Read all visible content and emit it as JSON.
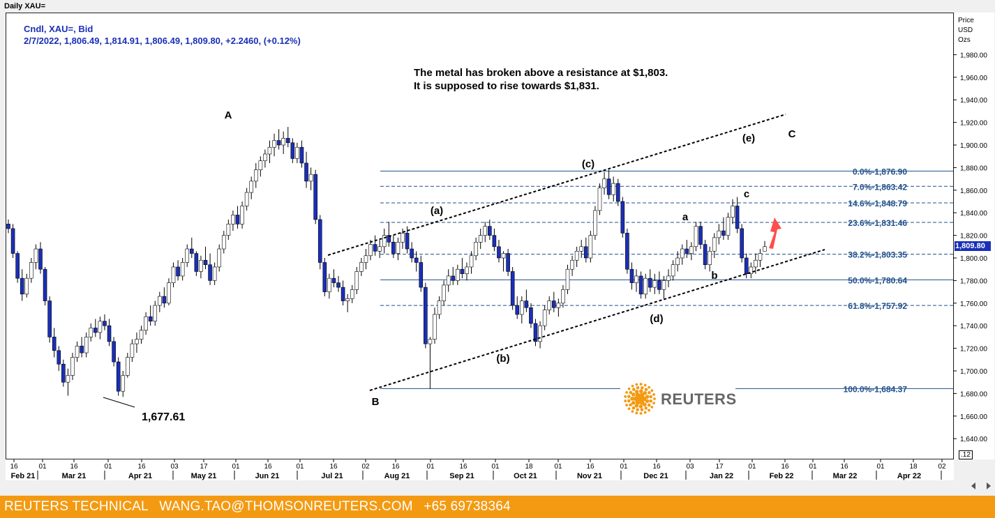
{
  "window_title": "Daily XAU=",
  "legend": {
    "line1": "Cndl, XAU=, Bid",
    "line2": "2/7/2022, 1,806.49, 1,814.91, 1,806.49, 1,809.80, +2.2460, (+0.12%)"
  },
  "annotation": {
    "line1": "The metal has broken above a resistance at $1,803.",
    "line2": "It is supposed to rise towards $1,831."
  },
  "price_axis_header": [
    "Price",
    "USD",
    "Ozs"
  ],
  "last_price_label": "1,809.80",
  "axis_corner_label": ".12",
  "low_label": "1,677.61",
  "logo_text": "REUTERS",
  "footer": {
    "brand": "REUTERS TECHNICAL",
    "email": "WANG.TAO@THOMSONREUTERS.COM",
    "phone": "+65 69738364"
  },
  "colors": {
    "bull_candle": "#ffffff",
    "bear_candle": "#1a2fb8",
    "fib_line": "#1f4f8a",
    "arrow": "#ff4d4d",
    "footer_bg": "#f39a12",
    "legend_text": "#1a2fb8"
  },
  "chart_data": {
    "type": "candlestick",
    "instrument": "XAU=",
    "timeframe": "Daily",
    "ylim": [
      1625,
      2000
    ],
    "y_ticks": [
      1640,
      1660,
      1680,
      1700,
      1720,
      1740,
      1760,
      1780,
      1800,
      1820,
      1840,
      1860,
      1880,
      1900,
      1920,
      1940,
      1960,
      1980
    ],
    "y_tick_labels": [
      "1,640.00",
      "1,660.00",
      "1,680.00",
      "1,700.00",
      "1,720.00",
      "1,740.00",
      "1,760.00",
      "1,780.00",
      "1,800.00",
      "1,820.00",
      "1,840.00",
      "1,860.00",
      "1,880.00",
      "1,900.00",
      "1,920.00",
      "1,940.00",
      "1,960.00",
      "1,980.00"
    ],
    "day_ticks": [
      "16",
      "01",
      "16",
      "01",
      "16",
      "03",
      "17",
      "01",
      "16",
      "01",
      "16",
      "02",
      "16",
      "01",
      "16",
      "01",
      "18",
      "01",
      "16",
      "01",
      "16",
      "03",
      "17",
      "01",
      "16",
      "01",
      "16",
      "01",
      "18",
      "02"
    ],
    "month_labels": [
      "Feb 21",
      "Mar 21",
      "Apr 21",
      "May 21",
      "Jun 21",
      "Jul 21",
      "Aug 21",
      "Sep 21",
      "Oct 21",
      "Nov 21",
      "Dec 21",
      "Jan 22",
      "Feb 22",
      "Mar 22",
      "Apr 22"
    ],
    "fibonacci": [
      {
        "label": "0.0%",
        "price": "1,876.90",
        "value": 1876.9,
        "style": "solid"
      },
      {
        "label": "7.0%",
        "price": "1,863.42",
        "value": 1863.42,
        "style": "dashed"
      },
      {
        "label": "14.6%",
        "price": "1,848.79",
        "value": 1848.79,
        "style": "dashed"
      },
      {
        "label": "23.6%",
        "price": "1,831.46",
        "value": 1831.46,
        "style": "dashed"
      },
      {
        "label": "38.2%",
        "price": "1,803.35",
        "value": 1803.35,
        "style": "dashed"
      },
      {
        "label": "50.0%",
        "price": "1,780.64",
        "value": 1780.64,
        "style": "solid"
      },
      {
        "label": "61.8%",
        "price": "1,757.92",
        "value": 1757.92,
        "style": "dashed"
      },
      {
        "label": "100.0%",
        "price": "1,684.37",
        "value": 1684.37,
        "style": "solid"
      }
    ],
    "wave_labels": [
      {
        "text": "A",
        "value": 1922
      },
      {
        "text": "B",
        "value": 1675
      },
      {
        "text": "(a)",
        "value": 1840
      },
      {
        "text": "(b)",
        "value": 1712
      },
      {
        "text": "(c)",
        "value": 1883
      },
      {
        "text": "(d)",
        "value": 1748
      },
      {
        "text": "(e)",
        "value": 1904
      },
      {
        "text": "C",
        "value": 1910
      },
      {
        "text": "a",
        "value": 1834
      },
      {
        "text": "b",
        "value": 1780
      },
      {
        "text": "c",
        "value": 1855
      }
    ],
    "candles": [
      [
        1830,
        1834,
        1822,
        1826
      ],
      [
        1826,
        1830,
        1800,
        1804
      ],
      [
        1804,
        1806,
        1778,
        1782
      ],
      [
        1782,
        1790,
        1762,
        1768
      ],
      [
        1768,
        1786,
        1765,
        1782
      ],
      [
        1782,
        1800,
        1778,
        1796
      ],
      [
        1796,
        1812,
        1790,
        1808
      ],
      [
        1808,
        1814,
        1786,
        1790
      ],
      [
        1790,
        1792,
        1758,
        1762
      ],
      [
        1762,
        1766,
        1725,
        1730
      ],
      [
        1730,
        1738,
        1712,
        1718
      ],
      [
        1718,
        1722,
        1700,
        1706
      ],
      [
        1706,
        1710,
        1686,
        1690
      ],
      [
        1690,
        1702,
        1678,
        1696
      ],
      [
        1696,
        1716,
        1692,
        1712
      ],
      [
        1712,
        1726,
        1708,
        1722
      ],
      [
        1722,
        1730,
        1712,
        1716
      ],
      [
        1716,
        1734,
        1712,
        1730
      ],
      [
        1730,
        1742,
        1726,
        1738
      ],
      [
        1738,
        1746,
        1730,
        1734
      ],
      [
        1734,
        1748,
        1728,
        1744
      ],
      [
        1744,
        1750,
        1736,
        1740
      ],
      [
        1740,
        1746,
        1722,
        1726
      ],
      [
        1726,
        1730,
        1704,
        1708
      ],
      [
        1708,
        1712,
        1678,
        1682
      ],
      [
        1682,
        1700,
        1677,
        1696
      ],
      [
        1696,
        1716,
        1694,
        1712
      ],
      [
        1712,
        1728,
        1708,
        1724
      ],
      [
        1724,
        1734,
        1716,
        1728
      ],
      [
        1728,
        1740,
        1724,
        1736
      ],
      [
        1736,
        1752,
        1732,
        1748
      ],
      [
        1748,
        1758,
        1740,
        1744
      ],
      [
        1744,
        1762,
        1740,
        1758
      ],
      [
        1758,
        1770,
        1752,
        1766
      ],
      [
        1766,
        1774,
        1756,
        1760
      ],
      [
        1760,
        1782,
        1758,
        1778
      ],
      [
        1778,
        1796,
        1774,
        1792
      ],
      [
        1792,
        1798,
        1780,
        1784
      ],
      [
        1784,
        1800,
        1780,
        1796
      ],
      [
        1796,
        1812,
        1792,
        1808
      ],
      [
        1808,
        1818,
        1800,
        1804
      ],
      [
        1804,
        1806,
        1784,
        1788
      ],
      [
        1788,
        1802,
        1782,
        1798
      ],
      [
        1798,
        1810,
        1790,
        1794
      ],
      [
        1794,
        1804,
        1776,
        1780
      ],
      [
        1780,
        1796,
        1776,
        1792
      ],
      [
        1792,
        1812,
        1788,
        1808
      ],
      [
        1808,
        1824,
        1804,
        1820
      ],
      [
        1820,
        1834,
        1816,
        1830
      ],
      [
        1830,
        1842,
        1824,
        1838
      ],
      [
        1838,
        1846,
        1826,
        1830
      ],
      [
        1830,
        1850,
        1826,
        1846
      ],
      [
        1846,
        1862,
        1842,
        1858
      ],
      [
        1858,
        1872,
        1852,
        1868
      ],
      [
        1868,
        1884,
        1862,
        1878
      ],
      [
        1878,
        1890,
        1872,
        1886
      ],
      [
        1886,
        1896,
        1880,
        1892
      ],
      [
        1892,
        1904,
        1884,
        1898
      ],
      [
        1898,
        1910,
        1890,
        1904
      ],
      [
        1904,
        1914,
        1896,
        1900
      ],
      [
        1900,
        1912,
        1892,
        1906
      ],
      [
        1906,
        1916,
        1898,
        1902
      ],
      [
        1902,
        1906,
        1884,
        1888
      ],
      [
        1888,
        1902,
        1884,
        1898
      ],
      [
        1898,
        1904,
        1880,
        1884
      ],
      [
        1884,
        1894,
        1862,
        1868
      ],
      [
        1868,
        1880,
        1860,
        1874
      ],
      [
        1874,
        1878,
        1830,
        1834
      ],
      [
        1834,
        1838,
        1790,
        1796
      ],
      [
        1796,
        1800,
        1766,
        1770
      ],
      [
        1770,
        1786,
        1764,
        1782
      ],
      [
        1782,
        1790,
        1774,
        1778
      ],
      [
        1778,
        1784,
        1770,
        1774
      ],
      [
        1774,
        1780,
        1758,
        1762
      ],
      [
        1762,
        1768,
        1752,
        1764
      ],
      [
        1764,
        1776,
        1760,
        1772
      ],
      [
        1772,
        1792,
        1768,
        1788
      ],
      [
        1788,
        1800,
        1784,
        1796
      ],
      [
        1796,
        1808,
        1790,
        1802
      ],
      [
        1802,
        1816,
        1798,
        1812
      ],
      [
        1812,
        1820,
        1802,
        1806
      ],
      [
        1806,
        1816,
        1800,
        1810
      ],
      [
        1810,
        1826,
        1804,
        1820
      ],
      [
        1820,
        1832,
        1810,
        1814
      ],
      [
        1814,
        1820,
        1800,
        1804
      ],
      [
        1804,
        1818,
        1798,
        1814
      ],
      [
        1814,
        1826,
        1808,
        1822
      ],
      [
        1822,
        1828,
        1804,
        1808
      ],
      [
        1808,
        1814,
        1796,
        1800
      ],
      [
        1800,
        1806,
        1788,
        1796
      ],
      [
        1796,
        1802,
        1770,
        1774
      ],
      [
        1774,
        1778,
        1720,
        1724
      ],
      [
        1724,
        1730,
        1684,
        1728
      ],
      [
        1728,
        1756,
        1724,
        1750
      ],
      [
        1750,
        1766,
        1746,
        1762
      ],
      [
        1762,
        1780,
        1758,
        1776
      ],
      [
        1776,
        1790,
        1770,
        1784
      ],
      [
        1784,
        1792,
        1776,
        1780
      ],
      [
        1780,
        1794,
        1776,
        1790
      ],
      [
        1790,
        1800,
        1782,
        1786
      ],
      [
        1786,
        1796,
        1780,
        1792
      ],
      [
        1792,
        1806,
        1786,
        1802
      ],
      [
        1802,
        1818,
        1798,
        1814
      ],
      [
        1814,
        1826,
        1808,
        1820
      ],
      [
        1820,
        1832,
        1814,
        1828
      ],
      [
        1828,
        1834,
        1816,
        1820
      ],
      [
        1820,
        1826,
        1806,
        1810
      ],
      [
        1810,
        1816,
        1796,
        1800
      ],
      [
        1800,
        1806,
        1788,
        1804
      ],
      [
        1804,
        1808,
        1784,
        1788
      ],
      [
        1788,
        1792,
        1754,
        1758
      ],
      [
        1758,
        1766,
        1746,
        1750
      ],
      [
        1750,
        1766,
        1742,
        1762
      ],
      [
        1762,
        1772,
        1752,
        1756
      ],
      [
        1756,
        1760,
        1738,
        1742
      ],
      [
        1742,
        1746,
        1722,
        1726
      ],
      [
        1726,
        1744,
        1720,
        1740
      ],
      [
        1740,
        1758,
        1736,
        1754
      ],
      [
        1754,
        1766,
        1750,
        1762
      ],
      [
        1762,
        1770,
        1752,
        1756
      ],
      [
        1756,
        1764,
        1748,
        1760
      ],
      [
        1760,
        1776,
        1756,
        1772
      ],
      [
        1772,
        1794,
        1768,
        1790
      ],
      [
        1790,
        1802,
        1784,
        1798
      ],
      [
        1798,
        1810,
        1792,
        1806
      ],
      [
        1806,
        1816,
        1800,
        1810
      ],
      [
        1810,
        1818,
        1796,
        1800
      ],
      [
        1800,
        1824,
        1796,
        1820
      ],
      [
        1820,
        1846,
        1816,
        1842
      ],
      [
        1842,
        1866,
        1838,
        1862
      ],
      [
        1862,
        1876,
        1856,
        1870
      ],
      [
        1870,
        1878,
        1852,
        1856
      ],
      [
        1856,
        1872,
        1850,
        1866
      ],
      [
        1866,
        1870,
        1846,
        1850
      ],
      [
        1850,
        1854,
        1818,
        1822
      ],
      [
        1822,
        1826,
        1786,
        1790
      ],
      [
        1790,
        1796,
        1772,
        1778
      ],
      [
        1778,
        1790,
        1770,
        1784
      ],
      [
        1784,
        1788,
        1764,
        1768
      ],
      [
        1768,
        1786,
        1764,
        1782
      ],
      [
        1782,
        1790,
        1770,
        1774
      ],
      [
        1774,
        1786,
        1768,
        1780
      ],
      [
        1780,
        1788,
        1768,
        1772
      ],
      [
        1772,
        1784,
        1764,
        1780
      ],
      [
        1780,
        1790,
        1774,
        1784
      ],
      [
        1784,
        1798,
        1780,
        1794
      ],
      [
        1794,
        1806,
        1788,
        1800
      ],
      [
        1800,
        1812,
        1794,
        1808
      ],
      [
        1808,
        1816,
        1800,
        1804
      ],
      [
        1804,
        1814,
        1798,
        1810
      ],
      [
        1810,
        1832,
        1806,
        1828
      ],
      [
        1828,
        1832,
        1808,
        1812
      ],
      [
        1812,
        1816,
        1790,
        1794
      ],
      [
        1794,
        1810,
        1788,
        1806
      ],
      [
        1806,
        1822,
        1800,
        1818
      ],
      [
        1818,
        1830,
        1812,
        1824
      ],
      [
        1824,
        1836,
        1816,
        1820
      ],
      [
        1820,
        1840,
        1816,
        1836
      ],
      [
        1836,
        1852,
        1830,
        1846
      ],
      [
        1846,
        1854,
        1822,
        1826
      ],
      [
        1826,
        1830,
        1796,
        1800
      ],
      [
        1800,
        1804,
        1782,
        1786
      ],
      [
        1786,
        1796,
        1782,
        1792
      ],
      [
        1792,
        1804,
        1786,
        1798
      ],
      [
        1798,
        1808,
        1792,
        1804
      ],
      [
        1806,
        1815,
        1806,
        1810
      ]
    ]
  }
}
